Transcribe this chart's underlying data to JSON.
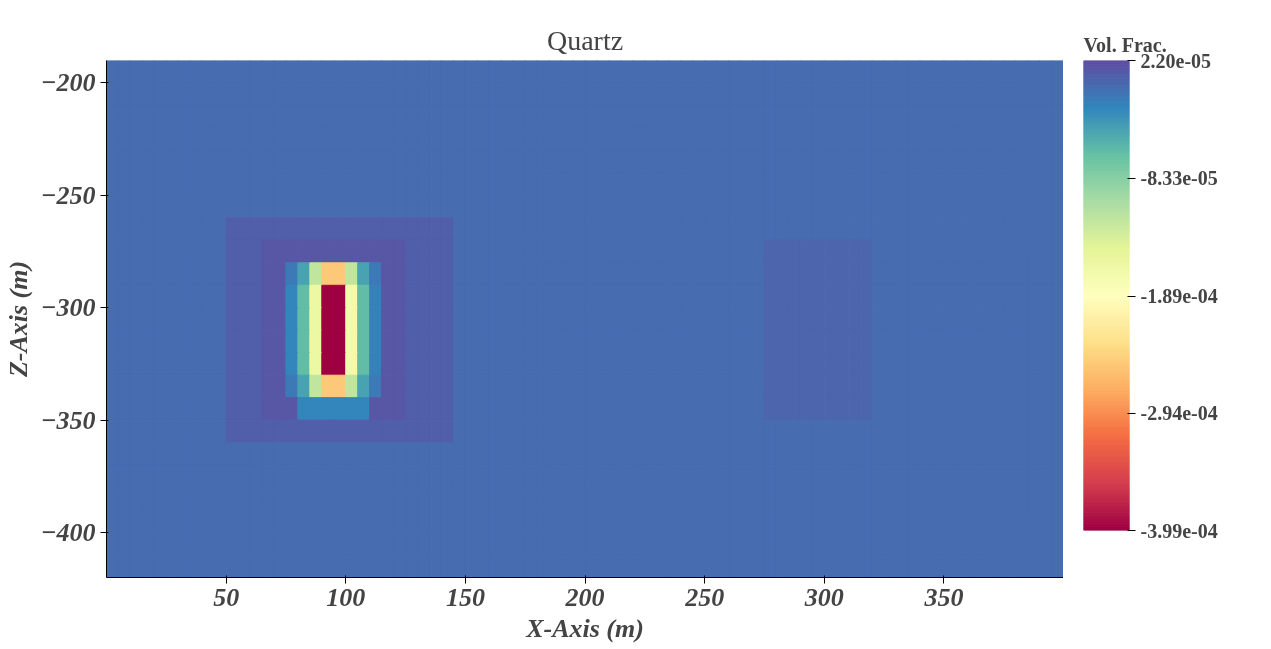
{
  "chart_data": {
    "type": "heatmap",
    "title": "Quartz",
    "xlabel": "X-Axis (m)",
    "ylabel": "Z-Axis (m)",
    "clabel": "Vol. Frac.",
    "xlim": [
      0,
      400
    ],
    "ylim": [
      -420,
      -190
    ],
    "xticks": [
      50,
      100,
      150,
      200,
      250,
      300,
      350
    ],
    "yticks": [
      -400,
      -350,
      -300,
      -250,
      -200
    ],
    "clim": [
      -0.000399,
      2.2e-05
    ],
    "cticks": [
      {
        "value": 2.2e-05,
        "label": "2.20e-05"
      },
      {
        "value": -8.33e-05,
        "label": "-8.33e-05"
      },
      {
        "value": -0.000189,
        "label": "-1.89e-04"
      },
      {
        "value": -0.000294,
        "label": "-2.94e-04"
      },
      {
        "value": -0.000399,
        "label": "-3.99e-04"
      }
    ],
    "cells": [
      [
        0,
        0,
        0,
        0,
        0,
        0,
        0,
        0,
        0,
        0,
        0,
        0,
        0,
        0,
        0,
        0,
        0,
        0,
        0,
        0,
        0,
        0,
        0,
        0,
        0,
        0,
        0,
        0,
        0,
        0,
        0,
        0,
        0,
        0,
        0,
        0,
        0,
        0,
        0,
        0,
        0,
        0,
        0,
        0,
        0,
        0,
        0,
        0,
        0,
        0,
        0,
        0,
        0,
        0,
        0,
        0,
        0,
        0,
        0,
        0,
        0,
        0,
        0,
        0,
        0,
        0,
        0,
        0,
        0,
        0,
        0,
        0,
        0,
        0,
        0,
        0,
        0,
        0,
        0,
        0
      ],
      [
        0,
        0,
        0,
        0,
        0,
        0,
        0,
        0,
        0,
        0,
        0,
        0,
        0,
        0,
        0,
        0,
        0,
        0,
        0,
        0,
        0,
        0,
        0,
        0,
        0,
        0,
        0,
        0,
        0,
        0,
        0,
        0,
        0,
        0,
        0,
        0,
        0,
        0,
        0,
        0,
        0,
        0,
        0,
        0,
        0,
        0,
        0,
        0,
        0,
        0,
        0,
        0,
        0,
        0,
        0,
        0,
        0,
        0,
        0,
        0,
        0,
        0,
        0,
        0,
        0,
        0,
        0,
        0,
        0,
        0,
        0,
        0,
        0,
        0,
        0,
        0,
        0,
        0,
        0,
        0
      ],
      [
        0,
        0,
        0,
        0,
        0,
        0,
        0,
        0,
        0,
        0,
        0,
        0,
        0,
        0,
        0,
        0,
        0,
        0,
        0,
        0,
        0,
        0,
        0,
        0,
        0,
        0,
        0,
        0,
        0,
        0,
        0,
        0,
        0,
        0,
        0,
        0,
        0,
        0,
        0,
        0,
        0,
        0,
        0,
        0,
        0,
        0,
        0,
        0,
        0,
        0,
        0,
        0,
        0,
        0,
        0,
        0,
        0,
        0,
        0,
        0,
        0,
        0,
        0,
        0,
        0,
        0,
        0,
        0,
        0,
        0,
        0,
        0,
        0,
        0,
        0,
        0,
        0,
        0,
        0,
        0
      ],
      [
        0,
        0,
        0,
        0,
        0,
        0,
        0,
        0,
        0,
        0,
        0,
        0,
        0,
        0,
        0,
        0,
        0,
        0,
        0,
        0,
        0,
        0,
        0,
        0,
        0,
        0,
        0,
        0,
        0,
        0,
        0,
        0,
        0,
        0,
        0,
        0,
        0,
        0,
        0,
        0,
        0,
        0,
        0,
        0,
        0,
        0,
        0,
        0,
        0,
        0,
        0,
        0,
        0,
        0,
        0,
        0,
        0,
        0,
        0,
        0,
        0,
        0,
        0,
        0,
        0,
        0,
        0,
        0,
        0,
        0,
        0,
        0,
        0,
        0,
        0,
        0,
        0,
        0,
        0,
        0
      ],
      [
        0,
        0,
        0,
        0,
        0,
        0,
        0,
        0,
        0,
        0,
        0,
        0,
        0,
        0,
        0,
        0,
        0,
        0,
        0,
        0,
        0,
        0,
        0,
        0,
        0,
        0,
        0,
        0,
        0,
        0,
        0,
        0,
        0,
        0,
        0,
        0,
        0,
        0,
        0,
        0,
        0,
        0,
        0,
        0,
        0,
        0,
        0,
        0,
        0,
        0,
        0,
        0,
        0,
        0,
        0,
        0,
        0,
        0,
        0,
        0,
        0,
        0,
        0,
        0,
        0,
        0,
        0,
        0,
        0,
        0,
        0,
        0,
        0,
        0,
        0,
        0,
        0,
        0,
        0,
        0
      ],
      [
        0,
        0,
        0,
        0,
        0,
        0,
        0,
        0,
        0,
        0,
        0,
        0,
        0,
        0,
        0,
        0,
        0,
        0,
        0,
        0,
        0,
        0,
        0,
        0,
        0,
        0,
        0,
        0,
        0,
        0,
        0,
        0,
        0,
        0,
        0,
        0,
        0,
        0,
        0,
        0,
        0,
        0,
        0,
        0,
        0,
        0,
        0,
        0,
        0,
        0,
        0,
        0,
        0,
        0,
        0,
        0,
        0,
        0,
        0,
        0,
        0,
        0,
        0,
        0,
        0,
        0,
        0,
        0,
        0,
        0,
        0,
        0,
        0,
        0,
        0,
        0,
        0,
        0,
        0,
        0
      ],
      [
        0,
        0,
        0,
        0,
        0,
        0,
        0,
        0,
        0,
        0,
        0,
        0,
        0,
        0,
        0,
        0,
        0,
        0,
        0,
        0,
        0,
        0,
        0,
        0,
        0,
        0,
        0,
        0,
        0,
        0,
        0,
        0,
        0,
        0,
        0,
        0,
        0,
        0,
        0,
        0,
        0,
        0,
        0,
        0,
        0,
        0,
        0,
        0,
        0,
        0,
        0,
        0,
        0,
        0,
        0,
        0,
        0,
        0,
        0,
        0,
        0,
        0,
        0,
        0,
        0,
        0,
        0,
        0,
        0,
        0,
        0,
        0,
        0,
        0,
        0,
        0,
        0,
        0,
        0,
        0
      ],
      [
        0,
        0,
        0,
        0,
        0,
        0,
        0,
        0,
        0,
        0,
        1e-05,
        1e-05,
        1e-05,
        1e-05,
        1e-05,
        1e-05,
        1e-05,
        1e-05,
        1e-05,
        1e-05,
        1e-05,
        1e-05,
        1e-05,
        1e-05,
        1e-05,
        1e-05,
        1e-05,
        1e-05,
        1e-05,
        0,
        0,
        0,
        0,
        0,
        0,
        0,
        0,
        0,
        0,
        0,
        0,
        0,
        0,
        0,
        0,
        0,
        0,
        0,
        0,
        0,
        0,
        0,
        0,
        0,
        0,
        0,
        0,
        0,
        0,
        0,
        0,
        0,
        0,
        0,
        0,
        0,
        0,
        0,
        0,
        0,
        0,
        0,
        0,
        0,
        0,
        0,
        0,
        0,
        0,
        0
      ],
      [
        0,
        0,
        0,
        0,
        0,
        0,
        0,
        0,
        0,
        0,
        1e-05,
        1e-05,
        1e-05,
        1.5e-05,
        1.5e-05,
        1.5e-05,
        1.5e-05,
        1.5e-05,
        1.5e-05,
        1.5e-05,
        1.5e-05,
        1.5e-05,
        1.5e-05,
        1.5e-05,
        1.5e-05,
        1e-05,
        1e-05,
        1e-05,
        1e-05,
        0,
        0,
        0,
        0,
        0,
        0,
        0,
        0,
        0,
        0,
        0,
        0,
        0,
        0,
        0,
        0,
        0,
        0,
        0,
        0,
        0,
        0,
        0,
        0,
        0,
        0,
        5e-06,
        5e-06,
        5e-06,
        5e-06,
        5e-06,
        5e-06,
        5e-06,
        5e-06,
        5e-06,
        0,
        0,
        0,
        0,
        0,
        0,
        0,
        0,
        0,
        0,
        0,
        0,
        0,
        0,
        0,
        0
      ],
      [
        0,
        0,
        0,
        0,
        0,
        0,
        0,
        0,
        0,
        0,
        1e-05,
        1e-05,
        1e-05,
        1.5e-05,
        1.5e-05,
        -1e-05,
        -4e-05,
        -0.00012,
        -0.00025,
        -0.00025,
        -0.00012,
        -4e-05,
        -1e-05,
        1.5e-05,
        1.5e-05,
        1e-05,
        1e-05,
        1e-05,
        1e-05,
        0,
        0,
        0,
        0,
        0,
        0,
        0,
        0,
        0,
        0,
        0,
        0,
        0,
        0,
        0,
        0,
        0,
        0,
        0,
        0,
        0,
        0,
        0,
        0,
        0,
        0,
        5e-06,
        5e-06,
        5e-06,
        5e-06,
        5e-06,
        5e-06,
        5e-06,
        5e-06,
        5e-06,
        0,
        0,
        0,
        0,
        0,
        0,
        0,
        0,
        0,
        0,
        0,
        0,
        0,
        0,
        0,
        0
      ],
      [
        0,
        0,
        0,
        0,
        0,
        0,
        0,
        0,
        0,
        0,
        1e-05,
        1e-05,
        1e-05,
        1.5e-05,
        1.5e-05,
        -2e-05,
        -6e-05,
        -0.00016,
        -0.000399,
        -0.000399,
        -0.00017,
        -6e-05,
        -1.5e-05,
        1.5e-05,
        1.5e-05,
        1e-05,
        1e-05,
        1e-05,
        1e-05,
        0,
        0,
        0,
        0,
        0,
        0,
        0,
        0,
        0,
        0,
        0,
        0,
        0,
        0,
        0,
        0,
        0,
        0,
        0,
        0,
        0,
        0,
        0,
        0,
        0,
        0,
        5e-06,
        5e-06,
        5e-06,
        5e-06,
        5e-06,
        5e-06,
        5e-06,
        5e-06,
        5e-06,
        0,
        0,
        0,
        0,
        0,
        0,
        0,
        0,
        0,
        0,
        0,
        0,
        0,
        0,
        0,
        0
      ],
      [
        0,
        0,
        0,
        0,
        0,
        0,
        0,
        0,
        0,
        0,
        1e-05,
        1e-05,
        1e-05,
        1.5e-05,
        1.5e-05,
        -2e-05,
        -6e-05,
        -0.00016,
        -0.000399,
        -0.000399,
        -0.00017,
        -6e-05,
        -1.5e-05,
        1.5e-05,
        1.5e-05,
        1e-05,
        1e-05,
        1e-05,
        1e-05,
        0,
        0,
        0,
        0,
        0,
        0,
        0,
        0,
        0,
        0,
        0,
        0,
        0,
        0,
        0,
        0,
        0,
        0,
        0,
        0,
        0,
        0,
        0,
        0,
        0,
        0,
        5e-06,
        5e-06,
        5e-06,
        5e-06,
        5e-06,
        5e-06,
        5e-06,
        5e-06,
        5e-06,
        0,
        0,
        0,
        0,
        0,
        0,
        0,
        0,
        0,
        0,
        0,
        0,
        0,
        0,
        0,
        0
      ],
      [
        0,
        0,
        0,
        0,
        0,
        0,
        0,
        0,
        0,
        0,
        1e-05,
        1e-05,
        1e-05,
        1.5e-05,
        1.5e-05,
        -2e-05,
        -6e-05,
        -0.00016,
        -0.000399,
        -0.000399,
        -0.00017,
        -6e-05,
        -1.5e-05,
        1.5e-05,
        1.5e-05,
        1e-05,
        1e-05,
        1e-05,
        1e-05,
        0,
        0,
        0,
        0,
        0,
        0,
        0,
        0,
        0,
        0,
        0,
        0,
        0,
        0,
        0,
        0,
        0,
        0,
        0,
        0,
        0,
        0,
        0,
        0,
        0,
        0,
        5e-06,
        5e-06,
        5e-06,
        5e-06,
        5e-06,
        5e-06,
        5e-06,
        5e-06,
        5e-06,
        0,
        0,
        0,
        0,
        0,
        0,
        0,
        0,
        0,
        0,
        0,
        0,
        0,
        0,
        0,
        0
      ],
      [
        0,
        0,
        0,
        0,
        0,
        0,
        0,
        0,
        0,
        0,
        1e-05,
        1e-05,
        1e-05,
        1.5e-05,
        1.5e-05,
        -2e-05,
        -6e-05,
        -0.00016,
        -0.000399,
        -0.000399,
        -0.00017,
        -6e-05,
        -1.5e-05,
        1.5e-05,
        1.5e-05,
        1e-05,
        1e-05,
        1e-05,
        1e-05,
        0,
        0,
        0,
        0,
        0,
        0,
        0,
        0,
        0,
        0,
        0,
        0,
        0,
        0,
        0,
        0,
        0,
        0,
        0,
        0,
        0,
        0,
        0,
        0,
        0,
        0,
        5e-06,
        5e-06,
        5e-06,
        5e-06,
        5e-06,
        5e-06,
        5e-06,
        5e-06,
        5e-06,
        0,
        0,
        0,
        0,
        0,
        0,
        0,
        0,
        0,
        0,
        0,
        0,
        0,
        0,
        0,
        0
      ],
      [
        0,
        0,
        0,
        0,
        0,
        0,
        0,
        0,
        0,
        0,
        1e-05,
        1e-05,
        1e-05,
        1.5e-05,
        1.5e-05,
        -1e-05,
        -4e-05,
        -0.00012,
        -0.00025,
        -0.00025,
        -0.00012,
        -4e-05,
        -1e-05,
        1.5e-05,
        1.5e-05,
        1e-05,
        1e-05,
        1e-05,
        1e-05,
        0,
        0,
        0,
        0,
        0,
        0,
        0,
        0,
        0,
        0,
        0,
        0,
        0,
        0,
        0,
        0,
        0,
        0,
        0,
        0,
        0,
        0,
        0,
        0,
        0,
        0,
        5e-06,
        5e-06,
        5e-06,
        5e-06,
        5e-06,
        5e-06,
        5e-06,
        5e-06,
        5e-06,
        0,
        0,
        0,
        0,
        0,
        0,
        0,
        0,
        0,
        0,
        0,
        0,
        0,
        0,
        0,
        0
      ],
      [
        0,
        0,
        0,
        0,
        0,
        0,
        0,
        0,
        0,
        0,
        1e-05,
        1e-05,
        1e-05,
        1.5e-05,
        1.5e-05,
        1.5e-05,
        -2e-05,
        -2e-05,
        -2e-05,
        -2e-05,
        -2e-05,
        -2e-05,
        1.5e-05,
        1.5e-05,
        1.5e-05,
        1e-05,
        1e-05,
        1e-05,
        1e-05,
        0,
        0,
        0,
        0,
        0,
        0,
        0,
        0,
        0,
        0,
        0,
        0,
        0,
        0,
        0,
        0,
        0,
        0,
        0,
        0,
        0,
        0,
        0,
        0,
        0,
        0,
        5e-06,
        5e-06,
        5e-06,
        5e-06,
        5e-06,
        5e-06,
        5e-06,
        5e-06,
        5e-06,
        0,
        0,
        0,
        0,
        0,
        0,
        0,
        0,
        0,
        0,
        0,
        0,
        0,
        0,
        0,
        0
      ],
      [
        0,
        0,
        0,
        0,
        0,
        0,
        0,
        0,
        0,
        0,
        1e-05,
        1e-05,
        1e-05,
        1e-05,
        1e-05,
        1e-05,
        1e-05,
        1e-05,
        1e-05,
        1e-05,
        1e-05,
        1e-05,
        1e-05,
        1e-05,
        1e-05,
        1e-05,
        1e-05,
        1e-05,
        1e-05,
        0,
        0,
        0,
        0,
        0,
        0,
        0,
        0,
        0,
        0,
        0,
        0,
        0,
        0,
        0,
        0,
        0,
        0,
        0,
        0,
        0,
        0,
        0,
        0,
        0,
        0,
        0,
        0,
        0,
        0,
        0,
        0,
        0,
        0,
        0,
        0,
        0,
        0,
        0,
        0,
        0,
        0,
        0,
        0,
        0,
        0,
        0,
        0,
        0,
        0,
        0
      ],
      [
        0,
        0,
        0,
        0,
        0,
        0,
        0,
        0,
        0,
        0,
        0,
        0,
        0,
        0,
        0,
        0,
        0,
        0,
        0,
        0,
        0,
        0,
        0,
        0,
        0,
        0,
        0,
        0,
        0,
        0,
        0,
        0,
        0,
        0,
        0,
        0,
        0,
        0,
        0,
        0,
        0,
        0,
        0,
        0,
        0,
        0,
        0,
        0,
        0,
        0,
        0,
        0,
        0,
        0,
        0,
        0,
        0,
        0,
        0,
        0,
        0,
        0,
        0,
        0,
        0,
        0,
        0,
        0,
        0,
        0,
        0,
        0,
        0,
        0,
        0,
        0,
        0,
        0,
        0,
        0
      ],
      [
        0,
        0,
        0,
        0,
        0,
        0,
        0,
        0,
        0,
        0,
        0,
        0,
        0,
        0,
        0,
        0,
        0,
        0,
        0,
        0,
        0,
        0,
        0,
        0,
        0,
        0,
        0,
        0,
        0,
        0,
        0,
        0,
        0,
        0,
        0,
        0,
        0,
        0,
        0,
        0,
        0,
        0,
        0,
        0,
        0,
        0,
        0,
        0,
        0,
        0,
        0,
        0,
        0,
        0,
        0,
        0,
        0,
        0,
        0,
        0,
        0,
        0,
        0,
        0,
        0,
        0,
        0,
        0,
        0,
        0,
        0,
        0,
        0,
        0,
        0,
        0,
        0,
        0,
        0,
        0
      ],
      [
        0,
        0,
        0,
        0,
        0,
        0,
        0,
        0,
        0,
        0,
        0,
        0,
        0,
        0,
        0,
        0,
        0,
        0,
        0,
        0,
        0,
        0,
        0,
        0,
        0,
        0,
        0,
        0,
        0,
        0,
        0,
        0,
        0,
        0,
        0,
        0,
        0,
        0,
        0,
        0,
        0,
        0,
        0,
        0,
        0,
        0,
        0,
        0,
        0,
        0,
        0,
        0,
        0,
        0,
        0,
        0,
        0,
        0,
        0,
        0,
        0,
        0,
        0,
        0,
        0,
        0,
        0,
        0,
        0,
        0,
        0,
        0,
        0,
        0,
        0,
        0,
        0,
        0,
        0,
        0
      ],
      [
        0,
        0,
        0,
        0,
        0,
        0,
        0,
        0,
        0,
        0,
        0,
        0,
        0,
        0,
        0,
        0,
        0,
        0,
        0,
        0,
        0,
        0,
        0,
        0,
        0,
        0,
        0,
        0,
        0,
        0,
        0,
        0,
        0,
        0,
        0,
        0,
        0,
        0,
        0,
        0,
        0,
        0,
        0,
        0,
        0,
        0,
        0,
        0,
        0,
        0,
        0,
        0,
        0,
        0,
        0,
        0,
        0,
        0,
        0,
        0,
        0,
        0,
        0,
        0,
        0,
        0,
        0,
        0,
        0,
        0,
        0,
        0,
        0,
        0,
        0,
        0,
        0,
        0,
        0,
        0
      ],
      [
        0,
        0,
        0,
        0,
        0,
        0,
        0,
        0,
        0,
        0,
        0,
        0,
        0,
        0,
        0,
        0,
        0,
        0,
        0,
        0,
        0,
        0,
        0,
        0,
        0,
        0,
        0,
        0,
        0,
        0,
        0,
        0,
        0,
        0,
        0,
        0,
        0,
        0,
        0,
        0,
        0,
        0,
        0,
        0,
        0,
        0,
        0,
        0,
        0,
        0,
        0,
        0,
        0,
        0,
        0,
        0,
        0,
        0,
        0,
        0,
        0,
        0,
        0,
        0,
        0,
        0,
        0,
        0,
        0,
        0,
        0,
        0,
        0,
        0,
        0,
        0,
        0,
        0,
        0,
        0
      ],
      [
        0,
        0,
        0,
        0,
        0,
        0,
        0,
        0,
        0,
        0,
        0,
        0,
        0,
        0,
        0,
        0,
        0,
        0,
        0,
        0,
        0,
        0,
        0,
        0,
        0,
        0,
        0,
        0,
        0,
        0,
        0,
        0,
        0,
        0,
        0,
        0,
        0,
        0,
        0,
        0,
        0,
        0,
        0,
        0,
        0,
        0,
        0,
        0,
        0,
        0,
        0,
        0,
        0,
        0,
        0,
        0,
        0,
        0,
        0,
        0,
        0,
        0,
        0,
        0,
        0,
        0,
        0,
        0,
        0,
        0,
        0,
        0,
        0,
        0,
        0,
        0,
        0,
        0,
        0,
        0
      ]
    ]
  }
}
